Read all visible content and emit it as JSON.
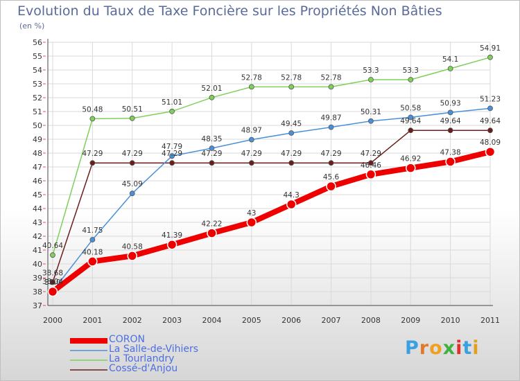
{
  "title": "Evolution du Taux de Taxe Foncière sur les Propriétés Non Bâties",
  "unit": "(en %)",
  "brand": "Proxiti",
  "colors": {
    "CORON": "#ee0000",
    "La Salle-de-Vihiers": "#4a90d9",
    "La Tourlandry": "#7fcf5a",
    "Cossé-d'Anjou": "#6b1c1c",
    "brand_letters": [
      "#3aa0e0",
      "#e07a2a",
      "#f0a020",
      "#40b040",
      "#e03030",
      "#3aa0e0",
      "#e0a020"
    ]
  },
  "chart_data": {
    "type": "line",
    "x": [
      "2000",
      "2001",
      "2002",
      "2003",
      "2004",
      "2005",
      "2006",
      "2007",
      "2008",
      "2009",
      "2010",
      "2011"
    ],
    "ylim": [
      37,
      56
    ],
    "yticks": [
      37,
      38,
      39,
      40,
      41,
      42,
      43,
      44,
      45,
      46,
      47,
      48,
      49,
      50,
      51,
      52,
      53,
      54,
      55,
      56
    ],
    "grid": true,
    "legend_position": "bottom-left",
    "series": [
      {
        "name": "CORON",
        "values": [
          38.0,
          40.18,
          40.58,
          41.39,
          42.22,
          43,
          44.3,
          45.6,
          46.46,
          46.92,
          47.38,
          48.09
        ],
        "labels": [
          "38.0",
          "40.18",
          "40.58",
          "41.39",
          "42.22",
          "43",
          "44.3",
          "45.6",
          "46.46",
          "46.92",
          "47.38",
          "48.09"
        ]
      },
      {
        "name": "La Salle-de-Vihiers",
        "values": [
          38.04,
          41.75,
          45.09,
          47.79,
          48.35,
          48.97,
          49.45,
          49.87,
          50.31,
          50.58,
          50.93,
          51.23
        ],
        "labels": [
          "38.04",
          "41.75",
          "45.09",
          "47.79",
          "48.35",
          "48.97",
          "49.45",
          "49.87",
          "50.31",
          "50.58",
          "50.93",
          "51.23"
        ]
      },
      {
        "name": "La Tourlandry",
        "values": [
          40.64,
          50.48,
          50.51,
          51.01,
          52.01,
          52.78,
          52.78,
          52.78,
          53.3,
          53.3,
          54.1,
          54.91
        ],
        "labels": [
          "40.64",
          "50.48",
          "50.51",
          "51.01",
          "52.01",
          "52.78",
          "52.78",
          "52.78",
          "53.3",
          "53.3",
          "54.1",
          "54.91"
        ]
      },
      {
        "name": "Cossé-d'Anjou",
        "values": [
          38.68,
          47.29,
          47.29,
          47.29,
          47.29,
          47.29,
          47.29,
          47.29,
          47.29,
          49.64,
          49.64,
          49.64
        ],
        "labels": [
          "38.68",
          "47.29",
          "47.29",
          "47.29",
          "47.29",
          "47.29",
          "47.29",
          "47.29",
          "47.29",
          "49.64",
          "49.64",
          "49.64"
        ]
      }
    ]
  }
}
